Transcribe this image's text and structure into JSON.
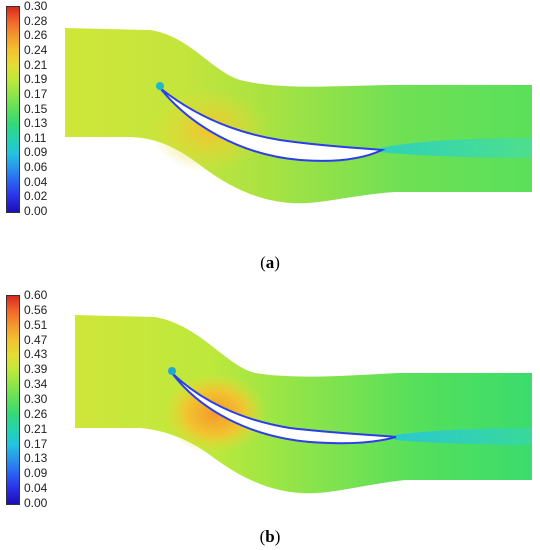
{
  "panels": [
    {
      "label_open": "(",
      "label_letter": "a",
      "label_close": ")",
      "colorbar_ticks": [
        "0.30",
        "0.28",
        "0.26",
        "0.24",
        "0.21",
        "0.19",
        "0.17",
        "0.15",
        "0.13",
        "0.11",
        "0.09",
        "0.06",
        "0.04",
        "0.02",
        "0.00"
      ],
      "colorbar_colors": [
        "#d92a1e",
        "#f2672a",
        "#f39a2c",
        "#f2c330",
        "#e4de33",
        "#bde83a",
        "#8ee54a",
        "#5ddf5a",
        "#33d97a",
        "#24d3b0",
        "#22c4de",
        "#2a93ec",
        "#2a5ff2",
        "#2a2ee6",
        "#1a10b5"
      ]
    },
    {
      "label_open": "(",
      "label_letter": "b",
      "label_close": ")",
      "colorbar_ticks": [
        "0.60",
        "0.56",
        "0.51",
        "0.47",
        "0.43",
        "0.39",
        "0.34",
        "0.30",
        "0.26",
        "0.21",
        "0.17",
        "0.13",
        "0.09",
        "0.04",
        "0.00"
      ],
      "colorbar_colors": [
        "#d92a1e",
        "#f2672a",
        "#f39a2c",
        "#f2c330",
        "#e4de33",
        "#bde83a",
        "#8ee54a",
        "#5ddf5a",
        "#33d97a",
        "#24d3b0",
        "#22c4de",
        "#2a93ec",
        "#2a5ff2",
        "#2a2ee6",
        "#1a10b5"
      ]
    }
  ]
}
